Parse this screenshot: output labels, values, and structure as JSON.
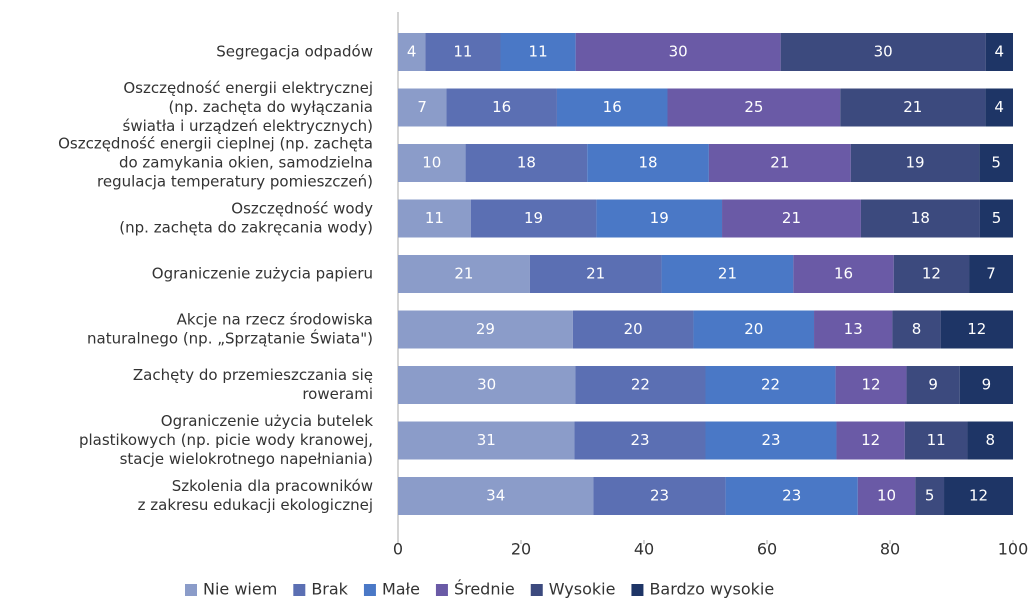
{
  "chart_data": {
    "type": "bar",
    "orientation": "horizontal",
    "stack": "percent",
    "categories": [
      [
        "Segregacja odpadów"
      ],
      [
        "Oszczędność energii elektrycznej",
        "(np. zachęta do wyłączania",
        "światła i urządzeń elektrycznych)"
      ],
      [
        "Oszczędność energii cieplnej (np. zachęta",
        "do zamykania okien, samodzielna",
        "regulacja temperatury pomieszczeń)"
      ],
      [
        "Oszczędność wody",
        "(np. zachęta do zakręcania wody)"
      ],
      [
        "Ograniczenie zużycia papieru"
      ],
      [
        "Akcje na rzecz środowiska",
        "naturalnego (np. „Sprzątanie Świata\")"
      ],
      [
        "Zachęty do przemieszczania się",
        "rowerami"
      ],
      [
        "Ograniczenie użycia butelek",
        "plastikowych (np. picie wody kranowej,",
        "stacje wielokrotnego napełniania)"
      ],
      [
        "Szkolenia dla pracowników",
        "z zakresu edukacji ekologicznej"
      ]
    ],
    "series": [
      {
        "name": "Nie wiem",
        "color": "#8b9cc9",
        "values": [
          4,
          7,
          10,
          11,
          21,
          29,
          30,
          31,
          34
        ]
      },
      {
        "name": "Brak",
        "color": "#5b6fb3",
        "values": [
          11,
          16,
          18,
          19,
          21,
          20,
          22,
          23,
          23
        ]
      },
      {
        "name": "Małe",
        "color": "#4a78c6",
        "values": [
          11,
          16,
          18,
          19,
          21,
          20,
          22,
          23,
          23
        ]
      },
      {
        "name": "Średnie",
        "color": "#6a5aa6",
        "values": [
          30,
          25,
          21,
          21,
          16,
          13,
          12,
          12,
          10
        ]
      },
      {
        "name": "Wysokie",
        "color": "#3c4a7e",
        "values": [
          30,
          21,
          19,
          18,
          12,
          8,
          9,
          11,
          5
        ]
      },
      {
        "name": "Bardzo wysokie",
        "color": "#1e3566",
        "values": [
          4,
          4,
          5,
          5,
          7,
          12,
          9,
          8,
          12
        ]
      }
    ],
    "xlim": [
      0,
      100
    ],
    "xticks": [
      0,
      20,
      40,
      60,
      80,
      100
    ],
    "legend": "bottom"
  }
}
